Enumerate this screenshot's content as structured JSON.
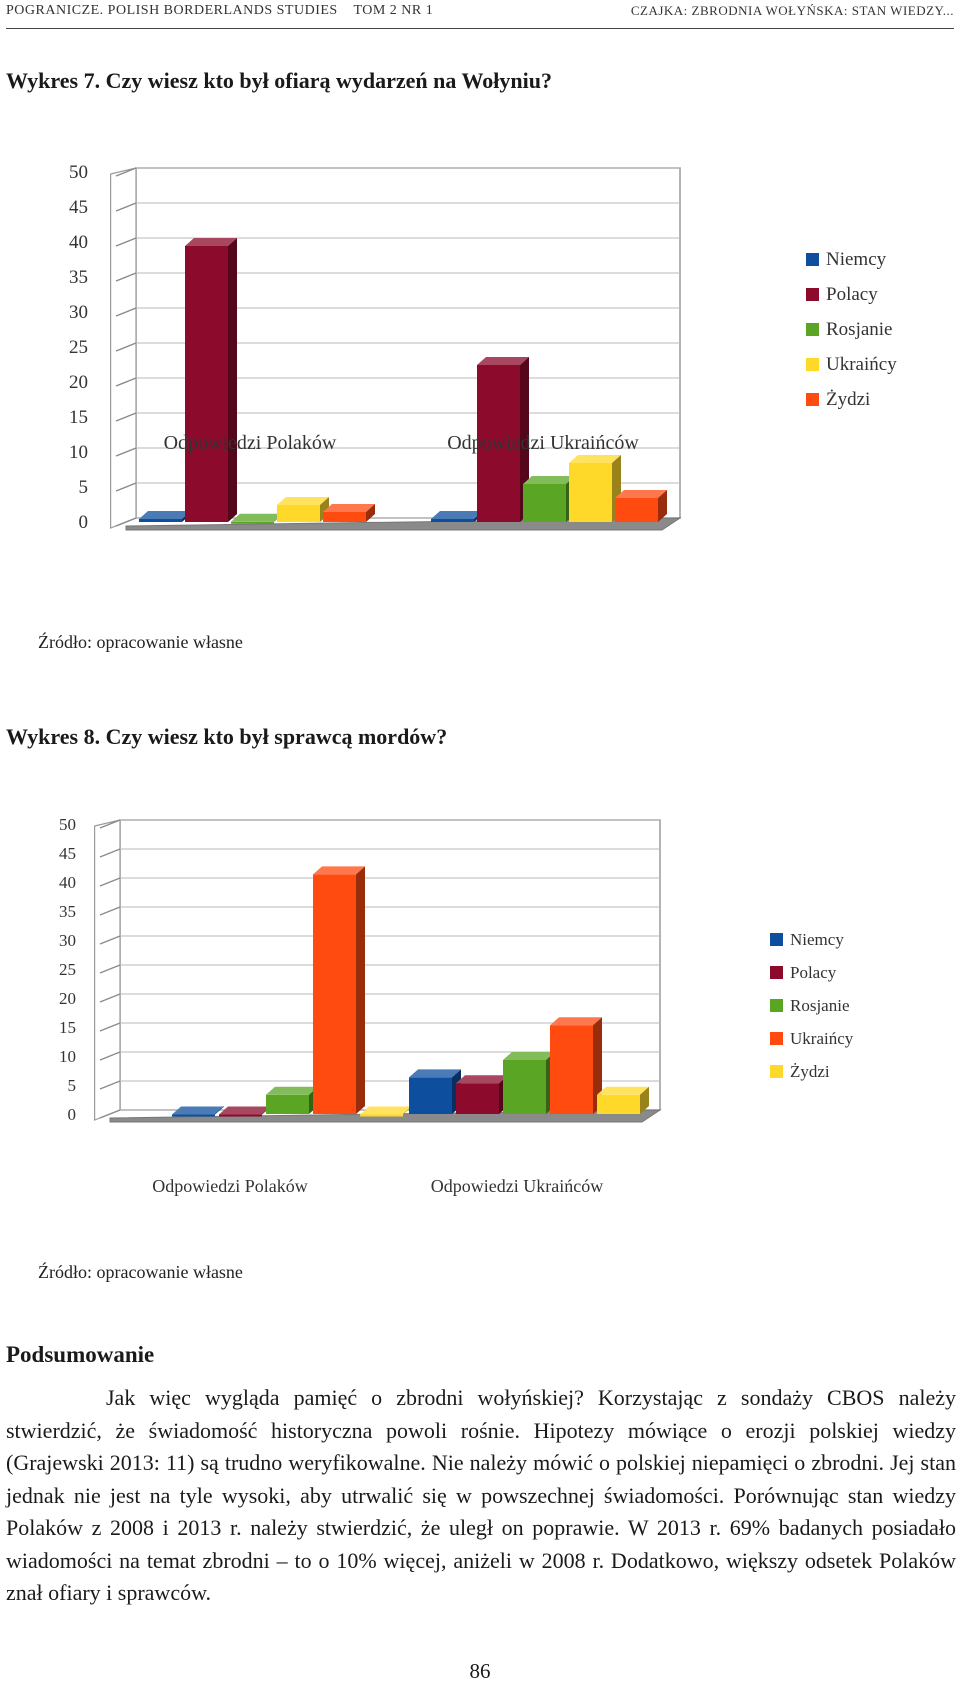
{
  "header": {
    "journal": "Pogranicze. Polish Borderlands Studies",
    "volume": "Tom 2 nr 1",
    "running_title": "Czajka: Zbrodnia wołyńska: stan wiedzy..."
  },
  "figure7": {
    "title": "Wykres 7. Czy wiesz kto był ofiarą wydarzeń na Wołyniu?",
    "source": "Źródło: opracowanie własne"
  },
  "figure8": {
    "title": "Wykres 8. Czy wiesz kto był sprawcą mordów?",
    "source": "Źródło: opracowanie własne"
  },
  "chart_data": [
    {
      "type": "bar",
      "title": "Wykres 7. Czy wiesz kto był ofiarą wydarzeń na Wołyniu?",
      "categories": [
        "Odpowiedzi Polaków",
        "Odpowiedzi Ukraińców"
      ],
      "series": [
        {
          "name": "Niemcy",
          "values": [
            1,
            1
          ],
          "color": "#0d4f9e"
        },
        {
          "name": "Polacy",
          "values": [
            40,
            23
          ],
          "color": "#8c0a2c"
        },
        {
          "name": "Rosjanie",
          "values": [
            0,
            6
          ],
          "color": "#5aa523"
        },
        {
          "name": "Ukraińcy",
          "values": [
            3,
            9
          ],
          "color": "#ffd92a"
        },
        {
          "name": "Żydzi",
          "values": [
            2,
            4
          ],
          "color": "#ff4a10"
        }
      ],
      "yticks": [
        0,
        5,
        10,
        15,
        20,
        25,
        30,
        35,
        40,
        45,
        50
      ],
      "ylim": [
        0,
        50
      ],
      "legend": "right",
      "grid": true,
      "style": "3d-column"
    },
    {
      "type": "bar",
      "title": "Wykres 8. Czy wiesz kto był sprawcą mordów?",
      "categories": [
        "Odpowiedzi Polaków",
        "Odpowiedzi Ukraińców"
      ],
      "series": [
        {
          "name": "Niemcy",
          "values": [
            0,
            7
          ],
          "color": "#0d4f9e"
        },
        {
          "name": "Polacy",
          "values": [
            0,
            6
          ],
          "color": "#8c0a2c"
        },
        {
          "name": "Rosjanie",
          "values": [
            4,
            10
          ],
          "color": "#5aa523"
        },
        {
          "name": "Ukraińcy",
          "values": [
            42,
            16
          ],
          "color": "#ff4a10"
        },
        {
          "name": "Żydzi",
          "values": [
            0,
            4
          ],
          "color": "#ffd92a"
        }
      ],
      "yticks": [
        0,
        5,
        10,
        15,
        20,
        25,
        30,
        35,
        40,
        45,
        50
      ],
      "ylim": [
        0,
        50
      ],
      "legend": "right",
      "grid": true,
      "style": "3d-column"
    }
  ],
  "summary": {
    "heading": "Podsumowanie",
    "paragraph": "Jak więc wygląda pamięć o zbrodni wołyńskiej? Korzystając z sondaży CBOS należy stwierdzić, że świadomość historyczna powoli rośnie. Hipotezy mówiące o erozji polskiej wiedzy (Grajewski 2013: 11) są trudno weryfikowalne. Nie należy mówić o polskiej niepamięci o zbrodni. Jej stan jednak nie jest na tyle wysoki, aby utrwalić się w powszechnej świadomości. Porównując stan wiedzy Polaków z 2008 i 2013 r. należy stwierdzić, że uległ on poprawie. W 2013 r. 69% badanych posiadało wiadomości na temat zbrodni – to o 10% więcej, aniżeli w 2008 r. Dodatkowo, większy odsetek Polaków znał ofiary i sprawców."
  },
  "page_number": "86"
}
